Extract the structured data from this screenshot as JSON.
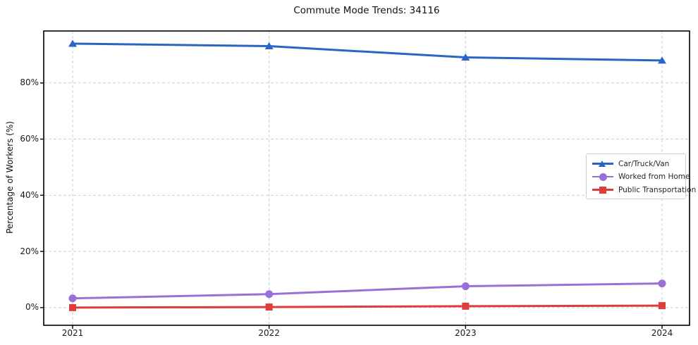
{
  "title": "Commute Mode Trends: 34116",
  "axes": {
    "ylabel": "Percentage of Workers (%)",
    "xlabel": "",
    "x_tick_labels": [
      "2021",
      "2022",
      "2023",
      "2024"
    ],
    "y_tick_labels": [
      "0%",
      "20%",
      "40%",
      "60%",
      "80%"
    ],
    "y_tick_values": [
      0,
      20,
      40,
      60,
      80
    ]
  },
  "chart_data": {
    "type": "line",
    "title": "Commute Mode Trends: 34116",
    "xlabel": "",
    "ylabel": "Percentage of Workers (%)",
    "categories": [
      "2021",
      "2022",
      "2023",
      "2024"
    ],
    "series": [
      {
        "name": "Car/Truck/Van",
        "values": [
          94.0,
          93.1,
          89.1,
          88.0
        ],
        "color": "#2a64c5",
        "marker": "triangle"
      },
      {
        "name": "Worked from Home",
        "values": [
          3.3,
          4.8,
          7.6,
          8.6
        ],
        "color": "#9a70d8",
        "marker": "circle"
      },
      {
        "name": "Public Transportation",
        "values": [
          0.0,
          0.2,
          0.5,
          0.7
        ],
        "color": "#e03c3c",
        "marker": "square"
      }
    ],
    "ylim": [
      -6.3,
      98.5
    ],
    "grid": true,
    "grid_style": "dashed",
    "grid_color": "#cfcfcf",
    "legend_position": "center right",
    "spine_color": "#000000"
  }
}
